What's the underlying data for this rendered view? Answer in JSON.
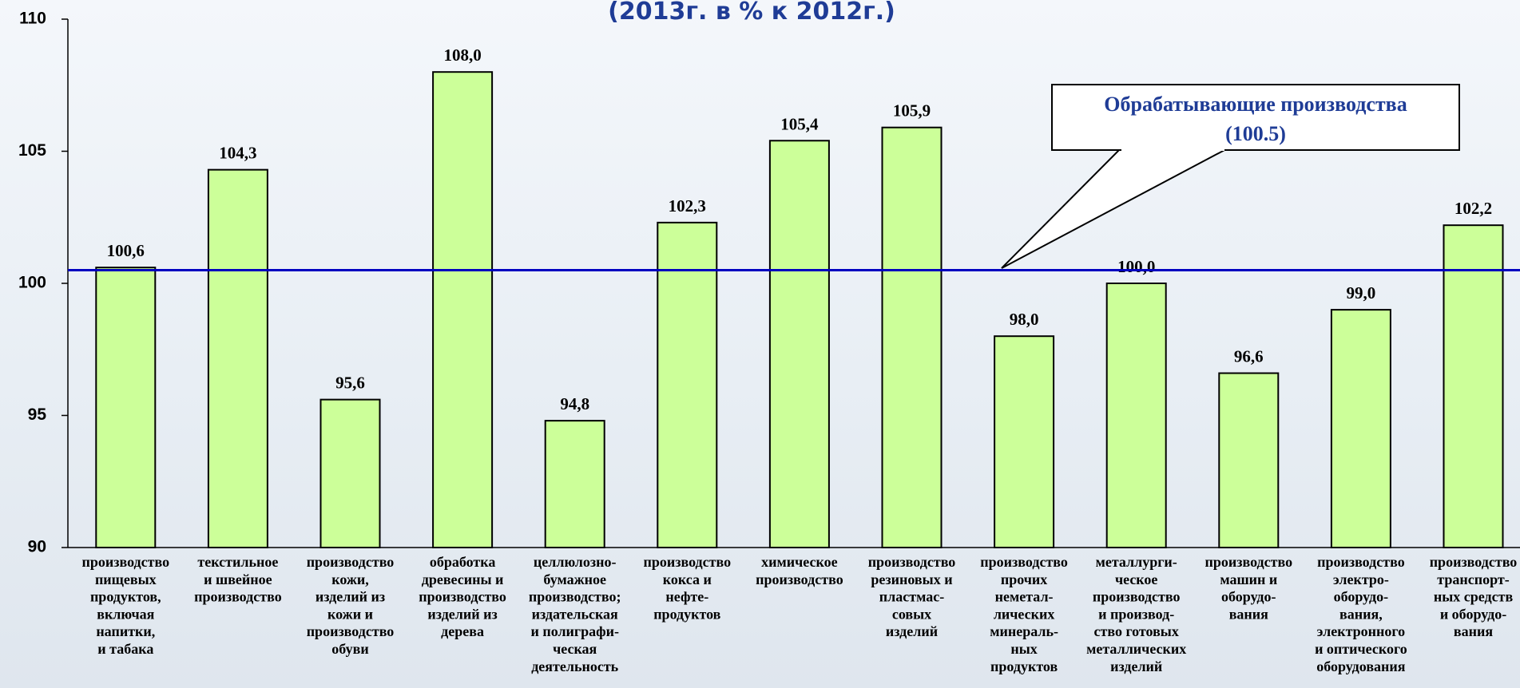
{
  "chart_data": {
    "type": "bar",
    "title": "(2013г. в % к 2012г.)",
    "categories": [
      [
        "производство",
        "пищевых",
        "продуктов,",
        "включая",
        "напитки,",
        "и табака"
      ],
      [
        "текстильное",
        "и швейное",
        "производство"
      ],
      [
        "производство",
        "кожи,",
        "изделий из",
        "кожи и",
        "производство",
        "обуви"
      ],
      [
        "обработка",
        "древесины и",
        "производство",
        "изделий из",
        "дерева"
      ],
      [
        "целлюлозно-",
        "бумажное",
        "производство;",
        "издательская",
        "и полиграфи-",
        "ческая",
        "деятельность"
      ],
      [
        "производство",
        "кокса и",
        "нефте-",
        "продуктов"
      ],
      [
        "химическое",
        "производство"
      ],
      [
        "производство",
        "резиновых и",
        "пластмас-",
        "совых",
        "изделий"
      ],
      [
        "производство",
        "прочих",
        "неметал-",
        "лических",
        "минераль-",
        "ных",
        "продуктов"
      ],
      [
        "металлурги-",
        "ческое",
        "производство",
        "и производ-",
        "ство готовых",
        "металлических",
        "изделий"
      ],
      [
        "производство",
        "машин и",
        "оборудо-",
        "вания"
      ],
      [
        "производство",
        "электро-",
        "оборудо-",
        "вания,",
        "электронного",
        "и оптического",
        "оборудования"
      ],
      [
        "производство",
        "транспорт-",
        "ных средств",
        "и оборудо-",
        "вания"
      ]
    ],
    "values": [
      100.6,
      104.3,
      95.6,
      108.0,
      94.8,
      102.3,
      105.4,
      105.9,
      98.0,
      100.0,
      96.6,
      99.0,
      102.2
    ],
    "value_labels": [
      "100,6",
      "104,3",
      "95,6",
      "108,0",
      "94,8",
      "102,3",
      "105,4",
      "105,9",
      "98,0",
      "100,0",
      "96,6",
      "99,0",
      "102,2"
    ],
    "color": "#ccff99",
    "ylim": [
      90,
      110
    ],
    "yticks": [
      90,
      95,
      100,
      105,
      110
    ],
    "reference_line": {
      "value": 100.5,
      "color": "#0000c0",
      "label": [
        "Обрабатывающие производства",
        "(100.5)"
      ]
    }
  }
}
